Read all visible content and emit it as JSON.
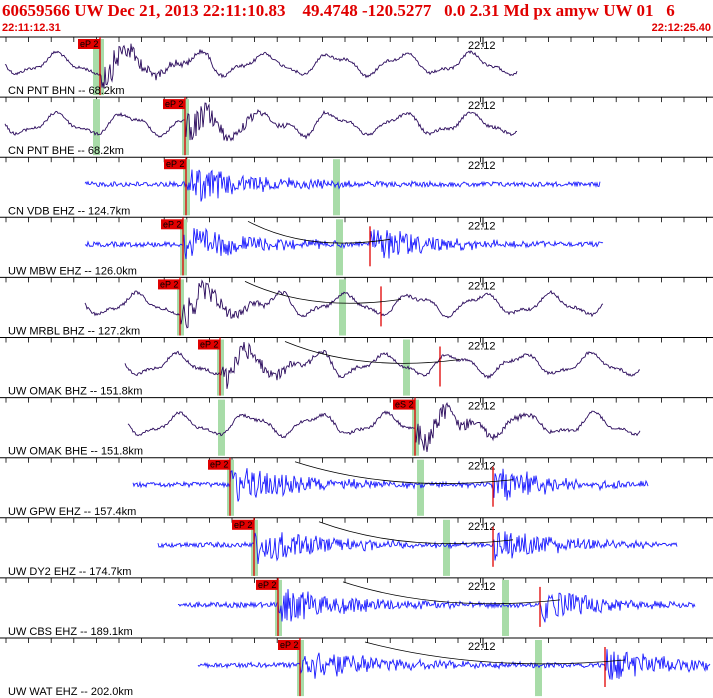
{
  "header": {
    "title": "60659566 UW Dec 21, 2013 22:11:10.83    49.4748 -120.5277   0.0 2.31 Md px amyw UW 01   6",
    "start_time": "22:11:12.31",
    "end_time": "22:12:25.40"
  },
  "colors": {
    "header_red": "#e00000",
    "trace_dark": "#2a0a5c",
    "trace_blue": "#1a1aff",
    "pick_box": "#e00000",
    "pick_band": "#a8dca8",
    "grid": "#000000"
  },
  "chart_data": {
    "type": "line",
    "x_start": "22:11:12.31",
    "x_end": "22:12:25.40",
    "minute_tick_label": "22:12",
    "pick_label": "eP 2",
    "traces": [
      {
        "label": "CN PNT BHN -- 68.2km",
        "distance_km": 68.2,
        "color": "dark",
        "kind": "long",
        "p_pick": "eP 2"
      },
      {
        "label": "CN PNT BHE -- 68.2km",
        "distance_km": 68.2,
        "color": "dark",
        "kind": "long",
        "p_pick": "eP 2"
      },
      {
        "label": "CN VDB EHZ -- 124.7km",
        "distance_km": 124.7,
        "color": "blue",
        "kind": "short",
        "p_pick": "eP 2"
      },
      {
        "label": "UW MBW EHZ -- 126.0km",
        "distance_km": 126.0,
        "color": "blue",
        "kind": "short",
        "p_pick": "eP 2"
      },
      {
        "label": "UW MRBL BHZ -- 127.2km",
        "distance_km": 127.2,
        "color": "dark",
        "kind": "long",
        "p_pick": "eP 2"
      },
      {
        "label": "UW OMAK BHZ -- 151.8km",
        "distance_km": 151.8,
        "color": "dark",
        "kind": "long",
        "p_pick": "eP 2"
      },
      {
        "label": "UW OMAK BHE -- 151.8km",
        "distance_km": 151.8,
        "color": "dark",
        "kind": "long",
        "p_pick": "eS 2"
      },
      {
        "label": "UW GPW EHZ -- 157.4km",
        "distance_km": 157.4,
        "color": "blue",
        "kind": "short",
        "p_pick": "eP 2"
      },
      {
        "label": "UW DY2 EHZ -- 174.7km",
        "distance_km": 174.7,
        "color": "blue",
        "kind": "short",
        "p_pick": "eP 2"
      },
      {
        "label": "UW CBS EHZ -- 189.1km",
        "distance_km": 189.1,
        "color": "blue",
        "kind": "short",
        "p_pick": "eP 2"
      },
      {
        "label": "UW WAT EHZ -- 202.0km",
        "distance_km": 202.0,
        "color": "blue",
        "kind": "short",
        "p_pick": "eP 2"
      }
    ]
  }
}
